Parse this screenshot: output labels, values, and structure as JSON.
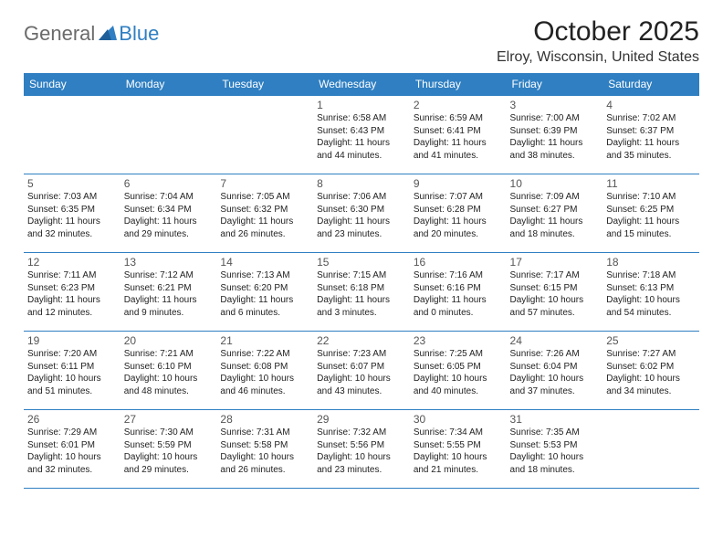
{
  "brand": {
    "part1": "General",
    "part2": "Blue",
    "triangle_color": "#2f7fc2",
    "text1_color": "#6b6b6b",
    "text2_color": "#2f7fc2"
  },
  "title": "October 2025",
  "location": "Elroy, Wisconsin, United States",
  "header_bg": "#2f7fc2",
  "header_fg": "#ffffff",
  "border_color": "#2f7fc2",
  "days_of_week": [
    "Sunday",
    "Monday",
    "Tuesday",
    "Wednesday",
    "Thursday",
    "Friday",
    "Saturday"
  ],
  "weeks": [
    [
      {
        "n": "",
        "t": "",
        "empty": true
      },
      {
        "n": "",
        "t": "",
        "empty": true
      },
      {
        "n": "",
        "t": "",
        "empty": true
      },
      {
        "n": "1",
        "t": "Sunrise: 6:58 AM\nSunset: 6:43 PM\nDaylight: 11 hours and 44 minutes."
      },
      {
        "n": "2",
        "t": "Sunrise: 6:59 AM\nSunset: 6:41 PM\nDaylight: 11 hours and 41 minutes."
      },
      {
        "n": "3",
        "t": "Sunrise: 7:00 AM\nSunset: 6:39 PM\nDaylight: 11 hours and 38 minutes."
      },
      {
        "n": "4",
        "t": "Sunrise: 7:02 AM\nSunset: 6:37 PM\nDaylight: 11 hours and 35 minutes."
      }
    ],
    [
      {
        "n": "5",
        "t": "Sunrise: 7:03 AM\nSunset: 6:35 PM\nDaylight: 11 hours and 32 minutes."
      },
      {
        "n": "6",
        "t": "Sunrise: 7:04 AM\nSunset: 6:34 PM\nDaylight: 11 hours and 29 minutes."
      },
      {
        "n": "7",
        "t": "Sunrise: 7:05 AM\nSunset: 6:32 PM\nDaylight: 11 hours and 26 minutes."
      },
      {
        "n": "8",
        "t": "Sunrise: 7:06 AM\nSunset: 6:30 PM\nDaylight: 11 hours and 23 minutes."
      },
      {
        "n": "9",
        "t": "Sunrise: 7:07 AM\nSunset: 6:28 PM\nDaylight: 11 hours and 20 minutes."
      },
      {
        "n": "10",
        "t": "Sunrise: 7:09 AM\nSunset: 6:27 PM\nDaylight: 11 hours and 18 minutes."
      },
      {
        "n": "11",
        "t": "Sunrise: 7:10 AM\nSunset: 6:25 PM\nDaylight: 11 hours and 15 minutes."
      }
    ],
    [
      {
        "n": "12",
        "t": "Sunrise: 7:11 AM\nSunset: 6:23 PM\nDaylight: 11 hours and 12 minutes."
      },
      {
        "n": "13",
        "t": "Sunrise: 7:12 AM\nSunset: 6:21 PM\nDaylight: 11 hours and 9 minutes."
      },
      {
        "n": "14",
        "t": "Sunrise: 7:13 AM\nSunset: 6:20 PM\nDaylight: 11 hours and 6 minutes."
      },
      {
        "n": "15",
        "t": "Sunrise: 7:15 AM\nSunset: 6:18 PM\nDaylight: 11 hours and 3 minutes."
      },
      {
        "n": "16",
        "t": "Sunrise: 7:16 AM\nSunset: 6:16 PM\nDaylight: 11 hours and 0 minutes."
      },
      {
        "n": "17",
        "t": "Sunrise: 7:17 AM\nSunset: 6:15 PM\nDaylight: 10 hours and 57 minutes."
      },
      {
        "n": "18",
        "t": "Sunrise: 7:18 AM\nSunset: 6:13 PM\nDaylight: 10 hours and 54 minutes."
      }
    ],
    [
      {
        "n": "19",
        "t": "Sunrise: 7:20 AM\nSunset: 6:11 PM\nDaylight: 10 hours and 51 minutes."
      },
      {
        "n": "20",
        "t": "Sunrise: 7:21 AM\nSunset: 6:10 PM\nDaylight: 10 hours and 48 minutes."
      },
      {
        "n": "21",
        "t": "Sunrise: 7:22 AM\nSunset: 6:08 PM\nDaylight: 10 hours and 46 minutes."
      },
      {
        "n": "22",
        "t": "Sunrise: 7:23 AM\nSunset: 6:07 PM\nDaylight: 10 hours and 43 minutes."
      },
      {
        "n": "23",
        "t": "Sunrise: 7:25 AM\nSunset: 6:05 PM\nDaylight: 10 hours and 40 minutes."
      },
      {
        "n": "24",
        "t": "Sunrise: 7:26 AM\nSunset: 6:04 PM\nDaylight: 10 hours and 37 minutes."
      },
      {
        "n": "25",
        "t": "Sunrise: 7:27 AM\nSunset: 6:02 PM\nDaylight: 10 hours and 34 minutes."
      }
    ],
    [
      {
        "n": "26",
        "t": "Sunrise: 7:29 AM\nSunset: 6:01 PM\nDaylight: 10 hours and 32 minutes."
      },
      {
        "n": "27",
        "t": "Sunrise: 7:30 AM\nSunset: 5:59 PM\nDaylight: 10 hours and 29 minutes."
      },
      {
        "n": "28",
        "t": "Sunrise: 7:31 AM\nSunset: 5:58 PM\nDaylight: 10 hours and 26 minutes."
      },
      {
        "n": "29",
        "t": "Sunrise: 7:32 AM\nSunset: 5:56 PM\nDaylight: 10 hours and 23 minutes."
      },
      {
        "n": "30",
        "t": "Sunrise: 7:34 AM\nSunset: 5:55 PM\nDaylight: 10 hours and 21 minutes."
      },
      {
        "n": "31",
        "t": "Sunrise: 7:35 AM\nSunset: 5:53 PM\nDaylight: 10 hours and 18 minutes."
      },
      {
        "n": "",
        "t": "",
        "empty": true
      }
    ]
  ]
}
